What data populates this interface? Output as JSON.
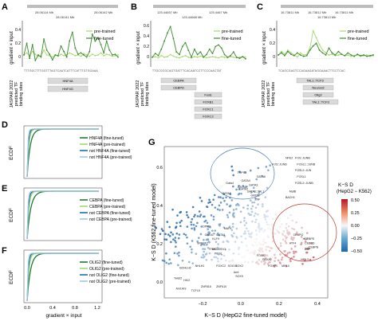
{
  "panels": {
    "A": {
      "letter": "A",
      "coords": [
        "28.06114 Mb",
        "28.06142 Mb",
        "28.06141 Mb"
      ],
      "ylabel": "gradient × input",
      "legend": [
        "pre-trained",
        "fine-tuned"
      ],
      "yticks": [
        "0.4",
        "0.2",
        "0"
      ],
      "sequence": "TTTGGCTTTGGTTTAGTCAATCATTTCATTTGTGGAAA",
      "tfs_label": [
        "JASPAR 2022",
        "predicted TF",
        "binding sites"
      ],
      "tfs": [
        "HNF4A",
        "HNF4G"
      ]
    },
    "B": {
      "letter": "B",
      "coords": [
        "125.44657 Mb",
        "125.4467 Mb",
        "125.44668 Mb"
      ],
      "ylabel": "gradient × input",
      "legend": [
        "pre-trained",
        "fine-tuned"
      ],
      "yticks": [
        "0.6",
        "0.4",
        "0.2",
        "0"
      ],
      "sequence": "TTGCGCGCAGTGATTTCACAATCCTTCCCAACTAT",
      "tfs_label": [
        "JASPAR 2022",
        "predicted TF",
        "binding sites"
      ],
      "tfs": [
        "CEBPA",
        "CEBPD",
        "FoxE",
        "FOXB1",
        "FOXC1",
        "FOXC2"
      ]
    },
    "C": {
      "letter": "C",
      "coords": [
        "16.73811 Mb",
        "16.73812 Mb",
        "16.73811 Mb",
        "16.73813 Mb"
      ],
      "ylabel": "gradient × input",
      "legend": [
        "pre-trained",
        "fine-tuned"
      ],
      "yticks": [
        "0.4",
        "0.2",
        "0"
      ],
      "sequence": "TCAGCGAGTCCAGAAGATAGGAAACTTCCTCAC",
      "tfs_label": [
        "JASPAR 2022",
        "predicted TF",
        "binding sites"
      ],
      "tfs": [
        "TAL1::TCF3",
        "Neurod2",
        "Olig2",
        "TAL1::TCF3"
      ]
    },
    "D": {
      "letter": "D",
      "ylabel": "ECDF",
      "legend": [
        "HNF4A (fine-tuned)",
        "HNF4A (pre-trained)",
        "not HNF4A (fine-tuned)",
        "not HNF4A (pre-trained)"
      ]
    },
    "E": {
      "letter": "E",
      "ylabel": "ECDF",
      "legend": [
        "CEBPA (fine-tuned)",
        "CEBPA (pre-trained)",
        "not CEBPA (fine-tuned)",
        "not CEBPA (pre-trained)"
      ]
    },
    "F": {
      "letter": "F",
      "ylabel": "ECDF",
      "legend": [
        "OLIG2 (fine-tuned)",
        "OLIG2 (pre-trained)",
        "not OLIG2 (fine-tuned)",
        "not OLIG2 (pre-trained)"
      ],
      "xticks": [
        "0.0",
        "0.4",
        "0.8",
        "1.2"
      ],
      "xlabel": "gradient × input"
    },
    "G": {
      "letter": "G",
      "xlabel": "K−S D (HepG2 fine-tuned model)",
      "ylabel": "K−S D (K562 fine-tuned model)",
      "xticks": [
        "−0.2",
        "0.0",
        "0.2",
        "0.4"
      ],
      "yticks": [
        "0.0",
        "0.2",
        "0.4",
        "0.6"
      ],
      "colorbar_title": [
        "K−S D",
        "(HepG2 − K562)"
      ],
      "colorbar_ticks": [
        "0.50",
        "0.25",
        "0.00",
        "−0.25",
        "−0.50"
      ],
      "labels": [
        {
          "t": "NFE2",
          "x": 0.33,
          "y": 0.59
        },
        {
          "t": "FOS::JUNB",
          "x": 0.38,
          "y": 0.59
        },
        {
          "t": "FOS::JUND",
          "x": 0.26,
          "y": 0.56
        },
        {
          "t": "FOSL1::JUNB",
          "x": 0.39,
          "y": 0.56
        },
        {
          "t": "FOSL2::JUN",
          "x": 0.38,
          "y": 0.53
        },
        {
          "t": "FOSL1",
          "x": 0.39,
          "y": 0.5
        },
        {
          "t": "FOSL2::JUNB",
          "x": 0.38,
          "y": 0.47
        },
        {
          "t": "MafB",
          "x": 0.35,
          "y": 0.43
        },
        {
          "t": "BACH1",
          "x": 0.33,
          "y": 0.4
        },
        {
          "t": "TRPS1",
          "x": 0.08,
          "y": 0.52
        },
        {
          "t": "GATA6",
          "x": 0.18,
          "y": 0.5
        },
        {
          "t": "GATA4",
          "x": 0.1,
          "y": 0.48
        },
        {
          "t": "Gata4",
          "x": 0.02,
          "y": 0.47
        },
        {
          "t": "GATA3",
          "x": 0.14,
          "y": 0.46
        },
        {
          "t": "GATA5",
          "x": 0.08,
          "y": 0.45
        },
        {
          "t": "GATA2",
          "x": 0.09,
          "y": 0.44
        },
        {
          "t": "GATA1::TAL1",
          "x": 0.13,
          "y": 0.43
        },
        {
          "t": "GATA1",
          "x": 0.15,
          "y": 0.41
        },
        {
          "t": "GATA6",
          "x": 0.0,
          "y": 0.42
        },
        {
          "t": "ZNF",
          "x": 0.17,
          "y": 0.39
        },
        {
          "t": "DPRX",
          "x": -0.1,
          "y": 0.26
        },
        {
          "t": "GATA1",
          "x": -0.03,
          "y": 0.22
        },
        {
          "t": "MAFK",
          "x": 0.01,
          "y": 0.25
        },
        {
          "t": "GATA1",
          "x": -0.09,
          "y": 0.22
        },
        {
          "t": "KLF9",
          "x": -0.05,
          "y": 0.2
        },
        {
          "t": "SREBF2",
          "x": -0.13,
          "y": 0.18
        },
        {
          "t": "TFEB",
          "x": -0.07,
          "y": 0.15
        },
        {
          "t": "MGA::EV1",
          "x": -0.05,
          "y": 0.15
        },
        {
          "t": "PIESL",
          "x": -0.04,
          "y": 0.13
        },
        {
          "t": "CEBPG",
          "x": 0.37,
          "y": 0.22
        },
        {
          "t": "CEBPE",
          "x": 0.43,
          "y": 0.2
        },
        {
          "t": "HLF",
          "x": 0.42,
          "y": 0.2
        },
        {
          "t": "ATF4",
          "x": 0.35,
          "y": 0.18
        },
        {
          "t": "CEBPD",
          "x": 0.43,
          "y": 0.18
        },
        {
          "t": "CEBPB",
          "x": 0.45,
          "y": 0.16
        },
        {
          "t": "DBP",
          "x": 0.43,
          "y": 0.15
        },
        {
          "t": "NFIL3",
          "x": 0.41,
          "y": 0.1
        },
        {
          "t": "FOXK2",
          "x": 0.18,
          "y": 0.12
        },
        {
          "t": "FOXA2",
          "x": 0.21,
          "y": 0.1
        },
        {
          "t": "FOXP1",
          "x": 0.24,
          "y": 0.07
        },
        {
          "t": "MR10",
          "x": 0.31,
          "y": 0.07
        },
        {
          "t": "FOXC2",
          "x": -0.03,
          "y": 0.07
        },
        {
          "t": "SOX15",
          "x": 0.03,
          "y": 0.07
        },
        {
          "t": "SOX2",
          "x": 0.07,
          "y": 0.07
        },
        {
          "t": "Arnt",
          "x": 0.06,
          "y": 0.04
        },
        {
          "t": "SOX9",
          "x": 0.07,
          "y": 0.02
        },
        {
          "t": "NHLH1",
          "x": -0.14,
          "y": 0.07
        },
        {
          "t": "BOHLH2",
          "x": -0.22,
          "y": 0.06
        },
        {
          "t": "Twist2",
          "x": -0.25,
          "y": 0.01
        },
        {
          "t": "HIC2",
          "x": -0.2,
          "y": 0.0
        },
        {
          "t": "ZNF816",
          "x": -0.11,
          "y": -0.03
        },
        {
          "t": "ZNF610",
          "x": -0.03,
          "y": -0.03
        },
        {
          "t": "TCFL5",
          "x": -0.16,
          "y": -0.05
        },
        {
          "t": "Arnt:Ahr",
          "x": -0.24,
          "y": -0.04
        }
      ]
    }
  },
  "chart_data": [
    {
      "type": "line",
      "panel": "A",
      "ylim": [
        -0.1,
        0.5
      ],
      "series": [
        {
          "name": "pre-trained",
          "values": [
            0.05,
            0.08,
            0.04,
            0.1,
            0.06,
            0.03,
            0.04,
            0.12,
            0.05,
            0.04,
            0.02,
            0.05,
            0.03,
            0.06,
            0.04,
            0.05,
            0.08,
            0.06,
            0.04,
            0.05,
            0.03,
            0.07,
            0.05,
            0.03,
            0.06,
            0.04,
            0.05,
            0.08,
            0.04,
            0.06,
            0.05,
            0.03,
            0.04,
            0.05
          ]
        },
        {
          "name": "fine-tuned",
          "values": [
            0.05,
            0.22,
            0.0,
            0.2,
            -0.03,
            0.05,
            0.02,
            0.28,
            0.12,
            0.06,
            -0.02,
            0.05,
            0.04,
            0.18,
            0.1,
            0.02,
            0.25,
            0.38,
            0.15,
            0.06,
            0.08,
            0.05,
            0.02,
            0.1,
            0.35,
            0.25,
            0.3,
            0.2,
            0.08,
            0.25,
            0.12,
            0.05,
            0.06,
            0.02
          ]
        }
      ]
    },
    {
      "type": "line",
      "panel": "B",
      "ylim": [
        -0.1,
        0.7
      ],
      "series": [
        {
          "name": "pre-trained",
          "values": [
            0.05,
            0.06,
            0.04,
            0.08,
            0.05,
            0.06,
            0.1,
            0.07,
            0.05,
            0.04,
            0.06,
            0.08,
            0.05,
            0.04,
            0.06,
            0.05,
            0.07,
            0.06,
            0.04,
            0.05,
            0.06,
            0.05,
            0.04,
            0.06,
            0.05,
            0.04,
            0.06,
            0.05,
            0.04,
            0.05,
            0.06,
            0.05
          ]
        },
        {
          "name": "fine-tuned",
          "values": [
            0.05,
            0.12,
            0.08,
            0.2,
            0.35,
            0.5,
            0.62,
            0.4,
            0.15,
            0.1,
            0.25,
            0.32,
            0.18,
            0.05,
            0.2,
            0.1,
            0.15,
            0.05,
            0.1,
            0.2,
            0.12,
            0.25,
            0.28,
            0.22,
            0.1,
            0.05,
            0.08,
            0.15,
            0.05,
            0.03,
            0.06,
            0.02
          ]
        }
      ]
    },
    {
      "type": "line",
      "panel": "C",
      "ylim": [
        -0.1,
        0.5
      ],
      "series": [
        {
          "name": "pre-trained",
          "values": [
            0.05,
            0.1,
            0.06,
            0.12,
            0.08,
            0.05,
            0.02,
            0.08,
            0.05,
            0.06,
            0.15,
            0.4,
            0.3,
            0.2,
            0.12,
            0.08,
            0.05,
            0.06,
            0.04,
            0.05,
            0.06,
            0.04,
            0.05,
            0.03,
            0.04,
            0.05,
            0.03,
            0.04,
            0.05,
            0.03,
            0.04
          ]
        },
        {
          "name": "fine-tuned",
          "values": [
            0.05,
            0.08,
            0.04,
            0.1,
            0.06,
            0.04,
            0.08,
            0.05,
            0.03,
            0.04,
            0.12,
            0.18,
            0.22,
            0.12,
            0.08,
            0.05,
            0.15,
            0.08,
            0.05,
            0.1,
            0.06,
            0.04,
            0.08,
            0.05,
            0.03,
            0.06,
            0.04,
            0.05,
            0.03,
            0.04,
            0.05
          ]
        }
      ]
    },
    {
      "type": "line",
      "panel": "D",
      "xlim": [
        0,
        1.2
      ],
      "ylim": [
        0,
        1
      ],
      "series": [
        {
          "name": "HNF4A (fine-tuned)",
          "k": 0.05
        },
        {
          "name": "HNF4A (pre-trained)",
          "k": 0.025
        },
        {
          "name": "not HNF4A (fine-tuned)",
          "k": 0.018
        },
        {
          "name": "not HNF4A (pre-trained)",
          "k": 0.012
        }
      ]
    },
    {
      "type": "line",
      "panel": "E",
      "xlim": [
        0,
        1.2
      ],
      "ylim": [
        0,
        1
      ],
      "series": [
        {
          "name": "CEBPA (fine-tuned)",
          "k": 0.06
        },
        {
          "name": "CEBPA (pre-trained)",
          "k": 0.028
        },
        {
          "name": "not CEBPA (fine-tuned)",
          "k": 0.02
        },
        {
          "name": "not CEBPA (pre-trained)",
          "k": 0.013
        }
      ]
    },
    {
      "type": "line",
      "panel": "F",
      "xlim": [
        0,
        1.2
      ],
      "ylim": [
        0,
        1
      ],
      "series": [
        {
          "name": "OLIG2 (fine-tuned)",
          "k": 0.055
        },
        {
          "name": "OLIG2 (pre-trained)",
          "k": 0.027
        },
        {
          "name": "not OLIG2 (fine-tuned)",
          "k": 0.019
        },
        {
          "name": "not OLIG2 (pre-trained)",
          "k": 0.012
        }
      ]
    },
    {
      "type": "scatter",
      "panel": "G",
      "xlim": [
        -0.3,
        0.55
      ],
      "ylim": [
        -0.08,
        0.65
      ],
      "points": []
    }
  ]
}
